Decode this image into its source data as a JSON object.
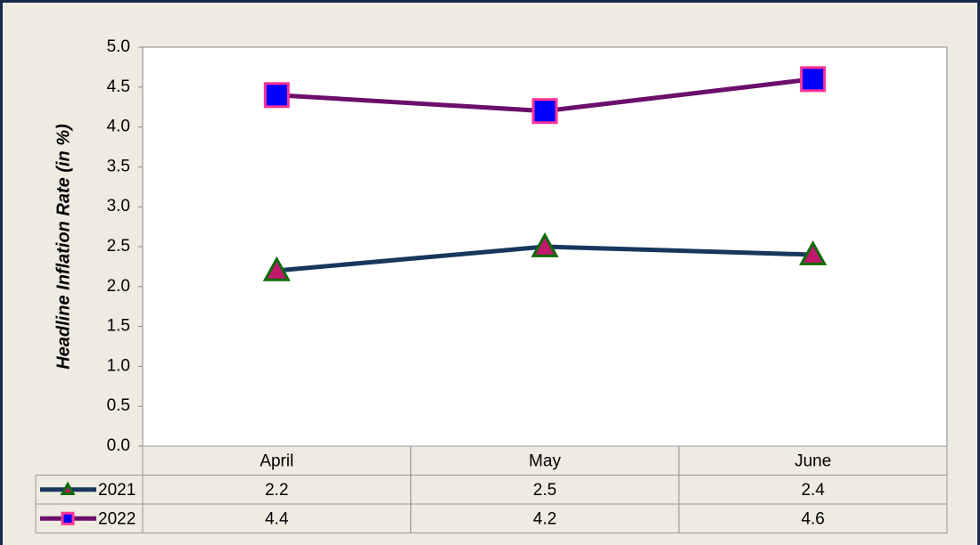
{
  "chart_data": {
    "type": "line",
    "ylabel": "Headline Inflation Rate (in %)",
    "categories": [
      "April",
      "May",
      "June"
    ],
    "series": [
      {
        "name": "2021",
        "color": "#17375e",
        "marker": "triangle",
        "marker_color": "#c0186a",
        "marker_edge": "#0a6b0a",
        "values": [
          2.2,
          2.5,
          2.4
        ]
      },
      {
        "name": "2022",
        "color": "#6b0f6b",
        "marker": "square",
        "marker_color": "#0000ff",
        "marker_edge": "#ff3399",
        "values": [
          4.4,
          4.2,
          4.6
        ]
      }
    ],
    "ylim": [
      0,
      5
    ],
    "yticks": [
      {
        "value": 0,
        "label": "0.0"
      },
      0.5,
      {
        "value": 1,
        "label": "1.0"
      },
      1.5,
      {
        "value": 2,
        "label": "2.0"
      },
      2.5,
      {
        "value": 3,
        "label": "3.0"
      },
      3.5,
      {
        "value": 4,
        "label": "4.0"
      },
      4.5,
      {
        "value": 5,
        "label": "5.0"
      }
    ],
    "grid": false,
    "data_table": true
  }
}
